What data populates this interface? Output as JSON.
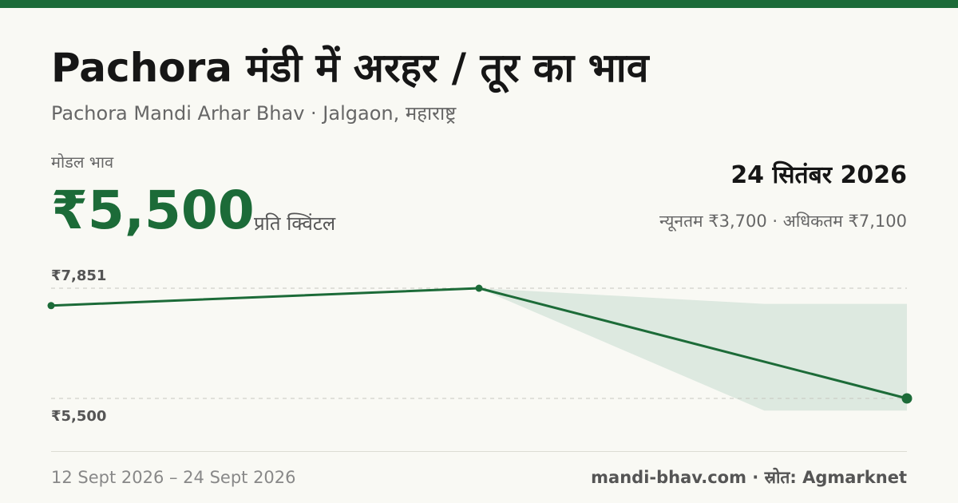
{
  "header": {
    "title": "Pachora मंडी में अरहर / तूर का भाव",
    "subtitle": "Pachora Mandi Arhar Bhav · Jalgaon, महाराष्ट्र"
  },
  "summary": {
    "modal_label": "मोडल भाव",
    "modal_price": "₹5,500",
    "unit": "प्रति क्विंटल",
    "date": "24 सितंबर 2026",
    "min_max": "न्यूनतम ₹3,700 · अधिकतम ₹7,100"
  },
  "chart_data": {
    "type": "line",
    "x": [
      "12 Sept 2026",
      "18 Sept 2026",
      "24 Sept 2026"
    ],
    "series": [
      {
        "values": [
          7480,
          7851,
          5500
        ]
      }
    ],
    "band": {
      "x": [
        "18 Sept 2026",
        "22 Sept 2026",
        "24 Sept 2026"
      ],
      "upper": [
        7851,
        7516,
        7516
      ],
      "lower": [
        7851,
        5240,
        5240
      ]
    },
    "y_tick_labels": [
      "₹7,851",
      "₹5,500"
    ],
    "y_ticks": [
      7851,
      5500
    ],
    "grid": true
  },
  "colors": {
    "accent": "#1c6b38",
    "band": "#dde9e0",
    "gridline": "#c8c8c0"
  },
  "footer": {
    "range": "12 Sept 2026 – 24 Sept 2026",
    "source": "mandi-bhav.com · स्रोत: Agmarknet"
  }
}
